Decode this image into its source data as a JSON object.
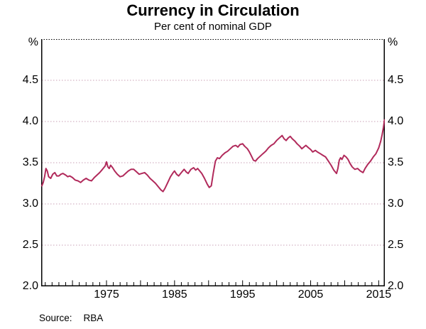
{
  "title": "Currency in Circulation",
  "subtitle": "Per cent of nominal GDP",
  "source": {
    "label": "Source:",
    "value": "RBA"
  },
  "y_axis": {
    "unit": "%",
    "tick_labels": [
      "4.5",
      "4.0",
      "3.5",
      "3.0",
      "2.5",
      "2.0"
    ],
    "tick_values": [
      4.5,
      4.0,
      3.5,
      3.0,
      2.5,
      2.0
    ]
  },
  "x_axis": {
    "tick_labels": [
      "1975",
      "1985",
      "1995",
      "2005",
      "2015"
    ],
    "tick_values": [
      1975,
      1985,
      1995,
      2005,
      2015
    ],
    "minor_tick_start": 1966,
    "minor_tick_end": 2015
  },
  "colors": {
    "line": "#b12a5b",
    "grid": "#c9a0b6",
    "frame": "#000000"
  },
  "chart_data": {
    "type": "line",
    "title": "Currency in Circulation",
    "subtitle": "Per cent of nominal GDP",
    "ylabel": "%",
    "ylim": [
      2.0,
      5.0
    ],
    "xlim": [
      1965.4,
      2015.9
    ],
    "grid": "horizontal dotted at 0.5 steps",
    "legend_position": "none",
    "gridline_values": [
      4.5,
      4.0,
      3.5,
      3.0,
      2.5
    ],
    "series": [
      {
        "name": "Currency in circulation (per cent of nominal GDP)",
        "color": "#b12a5b",
        "points": [
          [
            1965.5,
            3.22
          ],
          [
            1965.7,
            3.26
          ],
          [
            1965.9,
            3.33
          ],
          [
            1966.1,
            3.43
          ],
          [
            1966.3,
            3.4
          ],
          [
            1966.5,
            3.33
          ],
          [
            1966.8,
            3.31
          ],
          [
            1967.1,
            3.36
          ],
          [
            1967.4,
            3.38
          ],
          [
            1967.7,
            3.34
          ],
          [
            1968.0,
            3.34
          ],
          [
            1968.3,
            3.36
          ],
          [
            1968.6,
            3.37
          ],
          [
            1969.0,
            3.35
          ],
          [
            1969.3,
            3.33
          ],
          [
            1969.6,
            3.34
          ],
          [
            1970.0,
            3.32
          ],
          [
            1970.4,
            3.29
          ],
          [
            1970.8,
            3.28
          ],
          [
            1971.2,
            3.26
          ],
          [
            1971.6,
            3.29
          ],
          [
            1972.0,
            3.31
          ],
          [
            1972.4,
            3.29
          ],
          [
            1972.8,
            3.28
          ],
          [
            1973.2,
            3.32
          ],
          [
            1973.6,
            3.35
          ],
          [
            1974.0,
            3.38
          ],
          [
            1974.4,
            3.42
          ],
          [
            1974.8,
            3.46
          ],
          [
            1975.0,
            3.51
          ],
          [
            1975.2,
            3.45
          ],
          [
            1975.4,
            3.43
          ],
          [
            1975.6,
            3.47
          ],
          [
            1975.9,
            3.44
          ],
          [
            1976.2,
            3.4
          ],
          [
            1976.6,
            3.36
          ],
          [
            1977.0,
            3.33
          ],
          [
            1977.4,
            3.34
          ],
          [
            1977.8,
            3.37
          ],
          [
            1978.2,
            3.4
          ],
          [
            1978.6,
            3.42
          ],
          [
            1979.0,
            3.42
          ],
          [
            1979.4,
            3.39
          ],
          [
            1979.8,
            3.36
          ],
          [
            1980.2,
            3.37
          ],
          [
            1980.6,
            3.38
          ],
          [
            1981.0,
            3.35
          ],
          [
            1981.4,
            3.31
          ],
          [
            1981.8,
            3.28
          ],
          [
            1982.2,
            3.25
          ],
          [
            1982.6,
            3.21
          ],
          [
            1983.0,
            3.17
          ],
          [
            1983.3,
            3.15
          ],
          [
            1983.6,
            3.19
          ],
          [
            1984.0,
            3.26
          ],
          [
            1984.4,
            3.33
          ],
          [
            1984.8,
            3.38
          ],
          [
            1985.0,
            3.4
          ],
          [
            1985.3,
            3.36
          ],
          [
            1985.6,
            3.34
          ],
          [
            1986.0,
            3.38
          ],
          [
            1986.4,
            3.42
          ],
          [
            1986.7,
            3.39
          ],
          [
            1987.0,
            3.37
          ],
          [
            1987.4,
            3.42
          ],
          [
            1987.8,
            3.44
          ],
          [
            1988.1,
            3.41
          ],
          [
            1988.4,
            3.43
          ],
          [
            1988.7,
            3.4
          ],
          [
            1989.0,
            3.37
          ],
          [
            1989.4,
            3.31
          ],
          [
            1989.8,
            3.24
          ],
          [
            1990.1,
            3.2
          ],
          [
            1990.4,
            3.22
          ],
          [
            1990.7,
            3.38
          ],
          [
            1991.0,
            3.52
          ],
          [
            1991.3,
            3.56
          ],
          [
            1991.6,
            3.55
          ],
          [
            1992.0,
            3.59
          ],
          [
            1992.4,
            3.62
          ],
          [
            1992.8,
            3.64
          ],
          [
            1993.2,
            3.67
          ],
          [
            1993.6,
            3.7
          ],
          [
            1994.0,
            3.71
          ],
          [
            1994.3,
            3.69
          ],
          [
            1994.6,
            3.72
          ],
          [
            1995.0,
            3.73
          ],
          [
            1995.3,
            3.7
          ],
          [
            1995.7,
            3.67
          ],
          [
            1996.0,
            3.63
          ],
          [
            1996.3,
            3.58
          ],
          [
            1996.6,
            3.53
          ],
          [
            1996.9,
            3.52
          ],
          [
            1997.2,
            3.55
          ],
          [
            1997.6,
            3.58
          ],
          [
            1998.0,
            3.61
          ],
          [
            1998.4,
            3.64
          ],
          [
            1998.8,
            3.68
          ],
          [
            1999.2,
            3.71
          ],
          [
            1999.6,
            3.73
          ],
          [
            2000.0,
            3.77
          ],
          [
            2000.4,
            3.8
          ],
          [
            2000.8,
            3.83
          ],
          [
            2001.1,
            3.79
          ],
          [
            2001.4,
            3.77
          ],
          [
            2001.7,
            3.8
          ],
          [
            2002.0,
            3.82
          ],
          [
            2002.3,
            3.79
          ],
          [
            2002.7,
            3.76
          ],
          [
            2003.0,
            3.73
          ],
          [
            2003.4,
            3.7
          ],
          [
            2003.7,
            3.67
          ],
          [
            2004.0,
            3.69
          ],
          [
            2004.3,
            3.71
          ],
          [
            2004.7,
            3.68
          ],
          [
            2005.0,
            3.66
          ],
          [
            2005.3,
            3.63
          ],
          [
            2005.7,
            3.65
          ],
          [
            2006.0,
            3.63
          ],
          [
            2006.4,
            3.61
          ],
          [
            2006.8,
            3.59
          ],
          [
            2007.2,
            3.57
          ],
          [
            2007.6,
            3.52
          ],
          [
            2008.0,
            3.47
          ],
          [
            2008.4,
            3.41
          ],
          [
            2008.8,
            3.37
          ],
          [
            2009.0,
            3.43
          ],
          [
            2009.2,
            3.53
          ],
          [
            2009.4,
            3.56
          ],
          [
            2009.6,
            3.54
          ],
          [
            2009.9,
            3.59
          ],
          [
            2010.2,
            3.57
          ],
          [
            2010.5,
            3.54
          ],
          [
            2010.8,
            3.49
          ],
          [
            2011.1,
            3.45
          ],
          [
            2011.5,
            3.42
          ],
          [
            2011.9,
            3.43
          ],
          [
            2012.3,
            3.4
          ],
          [
            2012.7,
            3.38
          ],
          [
            2013.0,
            3.43
          ],
          [
            2013.4,
            3.48
          ],
          [
            2013.8,
            3.52
          ],
          [
            2014.2,
            3.57
          ],
          [
            2014.6,
            3.61
          ],
          [
            2015.0,
            3.68
          ],
          [
            2015.3,
            3.76
          ],
          [
            2015.5,
            3.84
          ],
          [
            2015.7,
            3.93
          ],
          [
            2015.85,
            4.02
          ]
        ]
      }
    ]
  }
}
